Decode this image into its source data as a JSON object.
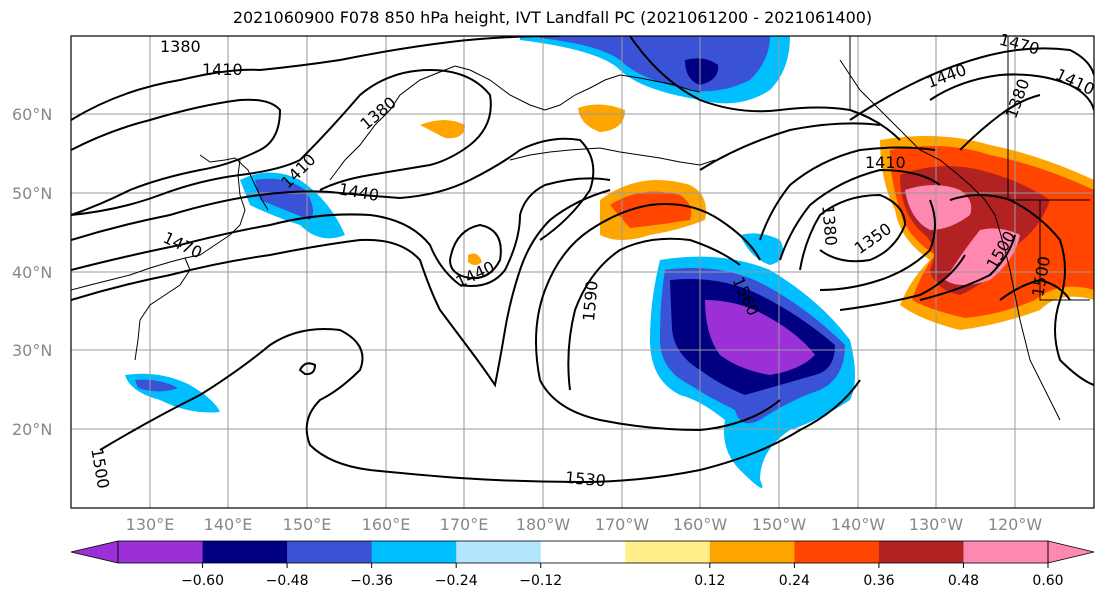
{
  "title": "2021060900 F078 850 hPa height, IVT Landfall PC (2021061200 - 2021061400)",
  "lat_labels": [
    "60°N",
    "50°N",
    "40°N",
    "30°N",
    "20°N"
  ],
  "lon_labels": [
    "130°E",
    "140°E",
    "150°E",
    "160°E",
    "170°E",
    "180°W",
    "170°W",
    "160°W",
    "150°W",
    "140°W",
    "130°W",
    "120°W"
  ],
  "contour_labels": [
    "1380",
    "1410",
    "1380",
    "1410",
    "1440",
    "1470",
    "1440",
    "1590",
    "1560",
    "1380",
    "1350",
    "1410",
    "1500",
    "1500",
    "1530",
    "1500",
    "1470",
    "1440",
    "1380",
    "1410"
  ],
  "colorbar": {
    "ticks": [
      "−0.60",
      "−0.48",
      "−0.36",
      "−0.24",
      "−0.12",
      "0.12",
      "0.24",
      "0.36",
      "0.48",
      "0.60"
    ],
    "colors": [
      "#9b30d9",
      "#000080",
      "#3a53d6",
      "#00bfff",
      "#b3e5ff",
      "#ffffff",
      "#ffee8a",
      "#ffa500",
      "#ff4500",
      "#b22222",
      "#ff88b0",
      "#ff88b0"
    ]
  }
}
